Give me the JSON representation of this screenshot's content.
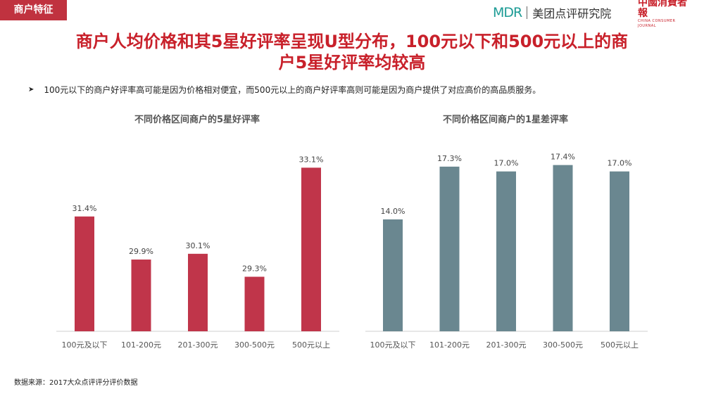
{
  "header": {
    "tag": "商户特征",
    "brand_mdr": "MDR",
    "brand_name": "美团点评研究院",
    "paper_logo": "中國消費者報",
    "paper_logo_en": "CHINA CONSUMER JOURNAL"
  },
  "title_line1": "商户人均价格和其5星好评率呈现U型分布，100元以下和500元以上的商",
  "title_line2": "户5星好评率均较高",
  "bullet_text": "100元以下的商户好评率高可能是因为价格相对便宜，而500元以上的商户好评率高则可能是因为商户提供了对应高价的高品质服务。",
  "source": "数据来源：2017大众点评评分评价数据",
  "colors": {
    "accent": "#c8202a",
    "bar_left": "#c0354a",
    "bar_right": "#6a8790"
  },
  "chart_data": [
    {
      "type": "bar",
      "title": "不同价格区间商户的5星好评率",
      "categories": [
        "100元及以下",
        "101-200元",
        "201-300元",
        "300-500元",
        "500元以上"
      ],
      "values": [
        31.4,
        29.9,
        30.1,
        29.3,
        33.1
      ],
      "value_labels": [
        "31.4%",
        "29.9%",
        "30.1%",
        "29.3%",
        "33.1%"
      ],
      "unit": "%",
      "ylim": [
        27.4,
        33.6
      ],
      "grid": false
    },
    {
      "type": "bar",
      "title": "不同价格区间商户的1星差评率",
      "categories": [
        "100元及以下",
        "101-200元",
        "201-300元",
        "300-500元",
        "500元以上"
      ],
      "values": [
        14.0,
        17.3,
        17.0,
        17.4,
        17.0
      ],
      "value_labels": [
        "14.0%",
        "17.3%",
        "17.0%",
        "17.4%",
        "17.0%"
      ],
      "unit": "%",
      "ylim": [
        7.0,
        18.0
      ],
      "grid": false
    }
  ]
}
